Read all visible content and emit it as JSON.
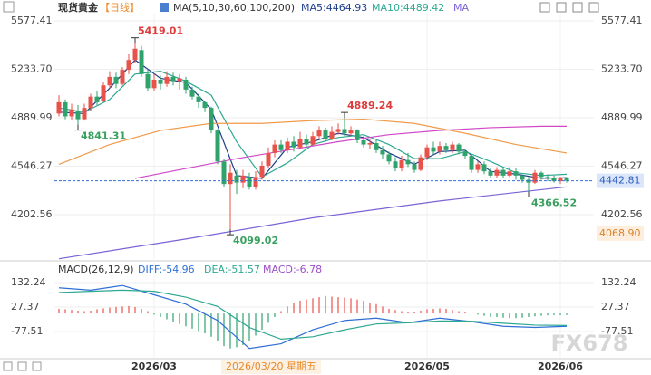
{
  "chart_data": {
    "type": "candlestick",
    "header": {
      "title": "现货黄金",
      "period": "【日线】",
      "ma_params": "MA(5,10,30,60,100,200)",
      "ma_more": "MA"
    },
    "macd_header": {
      "title": "MACD(26,12,9)",
      "diff": "DIFF:-54.96",
      "dea": "DEA:-51.57",
      "macd": "MACD:-6.78"
    },
    "cursor_label": "2026/03/20 星期五",
    "watermark": "FX678",
    "up_color": "#e8524a",
    "down_color": "#2fa36b",
    "categories": [
      null,
      null,
      null,
      null,
      null,
      null,
      null,
      null,
      null,
      null,
      null,
      null,
      null,
      null,
      null,
      "2026/03",
      null,
      null,
      null,
      null,
      null,
      null,
      null,
      null,
      null,
      null,
      null,
      null,
      null,
      null,
      null,
      null,
      null,
      null,
      null,
      null,
      null,
      null,
      null,
      null,
      null,
      null,
      null,
      null,
      null,
      null,
      null,
      null,
      null,
      null,
      null,
      null,
      null,
      null,
      null,
      null,
      null,
      null,
      "2026/05",
      null,
      null,
      null,
      null,
      null,
      null,
      null,
      null,
      null,
      null,
      null,
      null,
      null,
      null,
      null,
      null,
      null,
      null,
      null,
      null,
      "2026/06",
      null
    ],
    "open": [
      4920,
      5000,
      4900,
      4940,
      4880,
      4960,
      5040,
      5010,
      5120,
      5180,
      5130,
      5230,
      5300,
      5370,
      5200,
      5100,
      5160,
      5130,
      5180,
      5150,
      5160,
      5090,
      5040,
      5000,
      4960,
      4800,
      4580,
      4420,
      4480,
      4430,
      4470,
      4400,
      4470,
      4550,
      4640,
      4700,
      4660,
      4720,
      4680,
      4740,
      4700,
      4760,
      4800,
      4740,
      4790,
      4810,
      4780,
      4800,
      4730,
      4700,
      4710,
      4660,
      4630,
      4580,
      4530,
      4590,
      4560,
      4520,
      4610,
      4680,
      4650,
      4690,
      4660,
      4700,
      4650,
      4620,
      4520,
      4560,
      4510,
      4480,
      4520,
      4480,
      4510,
      4480,
      4450,
      4430,
      4500,
      4470,
      4460,
      4440,
      4460
    ],
    "high": [
      5050,
      5020,
      4990,
      4980,
      4990,
      5060,
      5080,
      5140,
      5220,
      5210,
      5250,
      5340,
      5419.01,
      5400,
      5230,
      5200,
      5190,
      5220,
      5210,
      5200,
      5180,
      5110,
      5060,
      5010,
      4970,
      4810,
      4600,
      4560,
      4520,
      4520,
      4500,
      4510,
      4580,
      4680,
      4730,
      4730,
      4750,
      4760,
      4790,
      4770,
      4790,
      4830,
      4820,
      4830,
      4850,
      4889.24,
      4830,
      4810,
      4760,
      4740,
      4730,
      4690,
      4650,
      4610,
      4620,
      4640,
      4580,
      4630,
      4700,
      4720,
      4720,
      4710,
      4720,
      4710,
      4670,
      4630,
      4580,
      4580,
      4530,
      4540,
      4530,
      4540,
      4530,
      4490,
      4470,
      4520,
      4510,
      4490,
      4480,
      4470,
      4470
    ],
    "low": [
      4900,
      4880,
      4870,
      4841.31,
      4870,
      4940,
      4980,
      5000,
      5100,
      5100,
      5120,
      5200,
      5280,
      5180,
      5080,
      5080,
      5090,
      5110,
      5120,
      5090,
      5060,
      5020,
      4960,
      4930,
      4780,
      4560,
      4400,
      4099.02,
      4350,
      4390,
      4380,
      4380,
      4450,
      4530,
      4610,
      4640,
      4640,
      4650,
      4670,
      4680,
      4690,
      4740,
      4720,
      4730,
      4770,
      4760,
      4760,
      4710,
      4680,
      4670,
      4640,
      4600,
      4560,
      4510,
      4510,
      4540,
      4500,
      4510,
      4590,
      4630,
      4630,
      4640,
      4640,
      4630,
      4600,
      4500,
      4500,
      4490,
      4460,
      4460,
      4460,
      4470,
      4450,
      4430,
      4366.52,
      4420,
      4450,
      4440,
      4430,
      4420,
      4430
    ],
    "close": [
      5000,
      4900,
      4950,
      4880,
      4960,
      5040,
      5000,
      5120,
      5180,
      5130,
      5230,
      5300,
      5380,
      5200,
      5100,
      5160,
      5130,
      5180,
      5150,
      5170,
      5090,
      5040,
      5000,
      4960,
      4800,
      4580,
      4420,
      4500,
      4430,
      4480,
      4400,
      4470,
      4550,
      4640,
      4700,
      4660,
      4720,
      4680,
      4740,
      4700,
      4760,
      4800,
      4740,
      4790,
      4810,
      4780,
      4800,
      4730,
      4700,
      4710,
      4660,
      4630,
      4580,
      4530,
      4590,
      4560,
      4520,
      4610,
      4680,
      4650,
      4690,
      4660,
      4700,
      4650,
      4620,
      4520,
      4560,
      4510,
      4480,
      4520,
      4480,
      4510,
      4480,
      4450,
      4430,
      4500,
      4470,
      4460,
      4440,
      4460,
      4442.81
    ],
    "ma_lines": [
      {
        "legend": "MA5:4464.93",
        "color": "#1d3f8c",
        "x": [
          0,
          4,
          8,
          12,
          16,
          20,
          24,
          28,
          32,
          36,
          40,
          44,
          48,
          52,
          56,
          60,
          64,
          68,
          72,
          76,
          80
        ],
        "values": [
          4930,
          4920,
          5100,
          5300,
          5170,
          5140,
          4950,
          4480,
          4460,
          4680,
          4720,
          4780,
          4750,
          4640,
          4560,
          4650,
          4660,
          4510,
          4490,
          4460,
          4464.93
        ]
      },
      {
        "legend": "MA10:4489.42",
        "color": "#2ea891",
        "x": [
          0,
          4,
          8,
          12,
          16,
          20,
          24,
          28,
          32,
          36,
          40,
          44,
          48,
          52,
          56,
          60,
          64,
          68,
          72,
          76,
          80
        ],
        "values": [
          4960,
          4930,
          5020,
          5200,
          5220,
          5150,
          5050,
          4720,
          4470,
          4570,
          4700,
          4750,
          4770,
          4700,
          4600,
          4600,
          4650,
          4580,
          4500,
          4480,
          4489.42
        ]
      },
      {
        "color": "#f09a4a",
        "x": [
          0,
          8,
          16,
          24,
          32,
          40,
          48,
          56,
          64,
          72,
          80
        ],
        "values": [
          4560,
          4700,
          4800,
          4850,
          4850,
          4870,
          4880,
          4850,
          4780,
          4700,
          4640
        ]
      },
      {
        "color": "#d048c8",
        "x": [
          12,
          20,
          28,
          36,
          44,
          52,
          60,
          68,
          76,
          80
        ],
        "values": [
          4460,
          4530,
          4600,
          4660,
          4720,
          4770,
          4800,
          4820,
          4830,
          4830
        ]
      },
      {
        "color": "#7b62d6",
        "x": [
          0,
          20,
          40,
          60,
          80
        ],
        "values": [
          3890,
          4030,
          4180,
          4300,
          4400
        ]
      }
    ],
    "annotations": [
      {
        "index": 12,
        "value": 5419.01,
        "side": "high"
      },
      {
        "index": 3,
        "value": 4841.31,
        "side": "low"
      },
      {
        "index": 45,
        "value": 4889.24,
        "side": "high"
      },
      {
        "index": 27,
        "value": 4099.02,
        "side": "low"
      },
      {
        "index": 74,
        "value": 4366.52,
        "side": "low"
      }
    ],
    "last_price": 4442.81,
    "bottom_label": {
      "value": 4068.9,
      "label": "4068.90"
    },
    "ylim": [
      3875,
      5629
    ],
    "yticks": [
      5577.41,
      {
        "value": 5233.7,
        "label": "5233.70"
      },
      4889.99,
      4546.27,
      4202.56
    ],
    "macd": {
      "ylim": [
        -190,
        179
      ],
      "yticks": [
        132.24,
        27.37,
        -77.51
      ],
      "lines": [
        {
          "color": "#2f6fd6",
          "x": [
            0,
            5,
            10,
            15,
            20,
            25,
            30,
            35,
            40,
            45,
            50,
            55,
            60,
            65,
            70,
            75,
            80
          ],
          "values": [
            110,
            100,
            120,
            80,
            40,
            -30,
            -150,
            -130,
            -70,
            -30,
            -20,
            -40,
            -20,
            -35,
            -55,
            -60,
            -54.96
          ]
        },
        {
          "color": "#2ea891",
          "x": [
            0,
            5,
            10,
            15,
            20,
            25,
            30,
            35,
            40,
            45,
            50,
            55,
            60,
            65,
            70,
            75,
            80
          ],
          "values": [
            90,
            95,
            100,
            95,
            70,
            30,
            -60,
            -110,
            -100,
            -70,
            -45,
            -40,
            -32,
            -33,
            -42,
            -50,
            -51.57
          ]
        }
      ],
      "hist": [
        20,
        18,
        15,
        12,
        10,
        12,
        18,
        22,
        25,
        28,
        30,
        32,
        28,
        20,
        10,
        -5,
        -15,
        -25,
        -35,
        -45,
        -55,
        -65,
        -75,
        -85,
        -100,
        -120,
        -140,
        -150,
        -145,
        -135,
        -120,
        -95,
        -70,
        -40,
        -15,
        10,
        30,
        45,
        55,
        60,
        65,
        70,
        75,
        72,
        70,
        68,
        65,
        60,
        55,
        45,
        40,
        30,
        20,
        15,
        10,
        5,
        8,
        12,
        18,
        20,
        22,
        20,
        15,
        10,
        5,
        0,
        -5,
        -10,
        -15,
        -15,
        -18,
        -20,
        -20,
        -18,
        -15,
        -12,
        -10,
        -8,
        -7,
        -7,
        -6.78
      ]
    }
  }
}
